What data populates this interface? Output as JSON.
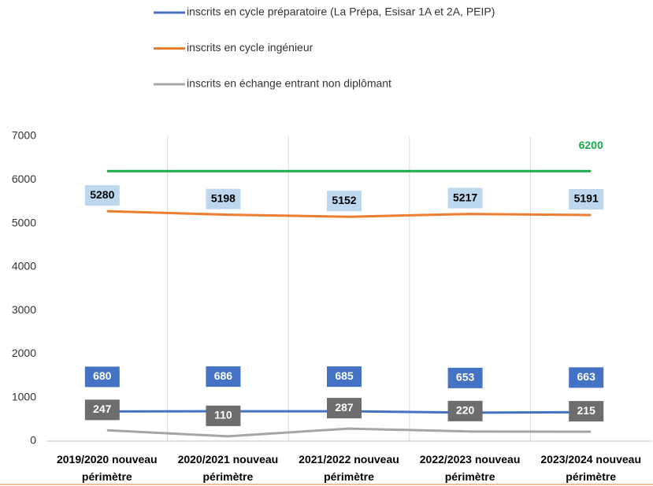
{
  "chart_data": {
    "type": "line",
    "categories": [
      "2019/2020 nouveau périmètre",
      "2020/2021 nouveau périmètre",
      "2021/2022 nouveau périmètre",
      "2022/2023 nouveau périmètre",
      "2023/2024 nouveau périmètre"
    ],
    "series": [
      {
        "name": "inscrits en cycle préparatoire (La Prépa, Esisar 1A et 2A, PEIP)",
        "color": "#4472c4",
        "label_bg": "#4472c4",
        "label_color": "#ffffff",
        "values": [
          680,
          686,
          685,
          653,
          663
        ]
      },
      {
        "name": "inscrits en cycle ingénieur",
        "color": "#ed7d31",
        "label_bg": "#bdd7ee",
        "label_color": "#000000",
        "values": [
          5280,
          5198,
          5152,
          5217,
          5191
        ]
      },
      {
        "name": "inscrits en échange entrant non diplômant",
        "color": "#a5a5a5",
        "label_bg": "#6d6d6d",
        "label_color": "#ffffff",
        "values": [
          247,
          110,
          287,
          220,
          215
        ]
      },
      {
        "color": "#1aab4b",
        "label_color": "#1aab4b",
        "label_last_only": true,
        "values": [
          6200,
          6200,
          6200,
          6200,
          6200
        ]
      }
    ],
    "ylim": [
      0,
      7000
    ],
    "yticks": [
      0,
      1000,
      2000,
      3000,
      4000,
      5000,
      6000,
      7000
    ],
    "grid": true
  }
}
